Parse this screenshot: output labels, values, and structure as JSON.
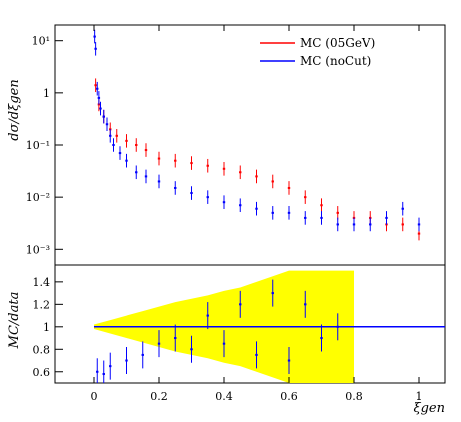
{
  "chart_data": {
    "type": "scatter",
    "xlim": [
      -0.12,
      1.08
    ],
    "x_ticks": [
      0,
      0.2,
      0.4,
      0.6,
      0.8,
      1
    ],
    "x_tick_labels": [
      "0",
      "0.2",
      "0.4",
      "0.6",
      "0.8",
      "1"
    ],
    "xlabel": "ξgen",
    "colors": {
      "mc_05gev": "#ff0000",
      "mc_nocut": "#0000ff",
      "ratio_band": "#ffff00",
      "axes": "#000000"
    },
    "upper_panel": {
      "ylabel": "dσ/dξgen",
      "yscale": "log",
      "ylim": [
        0.0005,
        20
      ],
      "y_ticks": [
        0.001,
        0.01,
        0.1,
        1,
        10
      ],
      "y_tick_labels": [
        "10⁻³",
        "10⁻²",
        "10⁻¹",
        "1",
        "10¹"
      ],
      "legend": {
        "position": "top-right",
        "entries": [
          {
            "label": "MC (05GeV)",
            "color": "#ff0000"
          },
          {
            "label": "MC (noCut)",
            "color": "#0000ff"
          }
        ]
      },
      "series": [
        {
          "label": "MC (05GeV)",
          "color": "#ff0000",
          "x": [
            0.005,
            0.015,
            0.03,
            0.05,
            0.07,
            0.1,
            0.13,
            0.16,
            0.2,
            0.25,
            0.3,
            0.35,
            0.4,
            0.45,
            0.5,
            0.55,
            0.6,
            0.65,
            0.7,
            0.75,
            0.8,
            0.85,
            0.9,
            0.95,
            1.0
          ],
          "y": [
            1.4,
            0.6,
            0.35,
            0.2,
            0.15,
            0.12,
            0.1,
            0.08,
            0.055,
            0.05,
            0.045,
            0.04,
            0.035,
            0.03,
            0.025,
            0.02,
            0.015,
            0.01,
            0.007,
            0.005,
            0.004,
            0.004,
            0.003,
            0.003,
            0.002
          ]
        },
        {
          "label": "MC (noCut)",
          "color": "#0000ff",
          "x": [
            0.002,
            0.005,
            0.01,
            0.015,
            0.02,
            0.03,
            0.04,
            0.05,
            0.06,
            0.08,
            0.1,
            0.13,
            0.16,
            0.2,
            0.25,
            0.3,
            0.35,
            0.4,
            0.45,
            0.5,
            0.55,
            0.6,
            0.65,
            0.7,
            0.75,
            0.8,
            0.85,
            0.9,
            0.95,
            1.0
          ],
          "y": [
            12,
            7,
            1.2,
            0.8,
            0.5,
            0.35,
            0.25,
            0.15,
            0.1,
            0.07,
            0.05,
            0.03,
            0.025,
            0.02,
            0.015,
            0.012,
            0.01,
            0.008,
            0.007,
            0.006,
            0.005,
            0.005,
            0.004,
            0.004,
            0.003,
            0.003,
            0.003,
            0.004,
            0.006,
            0.003
          ]
        }
      ]
    },
    "lower_panel": {
      "ylabel": "MC/data",
      "ylim": [
        0.5,
        1.55
      ],
      "y_ticks": [
        0.6,
        0.8,
        1,
        1.2,
        1.4
      ],
      "y_tick_labels": [
        "0.6",
        "0.8",
        "1",
        "1.2",
        "1.4"
      ],
      "reference_line": 1,
      "uncertainty_band": {
        "color": "#ffff00",
        "x": [
          0,
          0.05,
          0.1,
          0.15,
          0.2,
          0.25,
          0.3,
          0.35,
          0.4,
          0.45,
          0.5,
          0.55,
          0.6,
          0.65,
          0.7,
          0.75,
          0.8
        ],
        "half_width": [
          0.02,
          0.06,
          0.1,
          0.14,
          0.18,
          0.22,
          0.25,
          0.28,
          0.32,
          0.35,
          0.4,
          0.45,
          0.5,
          0.5,
          0.5,
          0.5,
          0.5
        ]
      },
      "series": [
        {
          "label": "MC (noCut)",
          "color": "#0000ff",
          "x": [
            0.01,
            0.03,
            0.05,
            0.1,
            0.15,
            0.2,
            0.25,
            0.3,
            0.35,
            0.4,
            0.45,
            0.5,
            0.55,
            0.6,
            0.65,
            0.7,
            0.75
          ],
          "y": [
            0.6,
            0.58,
            0.65,
            0.7,
            0.75,
            0.85,
            0.9,
            0.8,
            1.1,
            0.85,
            1.2,
            0.75,
            1.3,
            0.7,
            1.2,
            0.9,
            1.0
          ]
        }
      ]
    }
  }
}
